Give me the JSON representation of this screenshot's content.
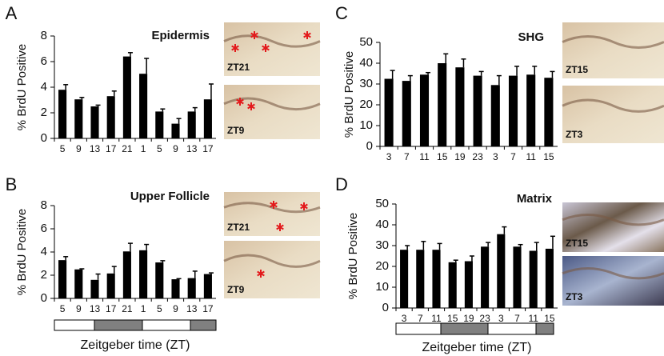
{
  "chart_data": [
    {
      "type": "bar",
      "panel": "A",
      "title": "Epidermis",
      "ylabel": "% BrdU Positive",
      "categories": [
        "5",
        "9",
        "13",
        "17",
        "21",
        "1",
        "5",
        "9",
        "13",
        "17"
      ],
      "values": [
        3.8,
        3.05,
        2.5,
        3.3,
        6.4,
        5.05,
        2.1,
        1.15,
        2.1,
        3.05
      ],
      "errors": [
        0.4,
        0.15,
        0.1,
        0.4,
        0.3,
        1.2,
        0.2,
        0.4,
        0.3,
        1.2
      ],
      "color": "#000000",
      "ylim": [
        0,
        8
      ],
      "yticks": [
        0,
        2,
        4,
        6,
        8
      ],
      "images": [
        {
          "label": "ZT21"
        },
        {
          "label": "ZT9"
        }
      ]
    },
    {
      "type": "bar",
      "panel": "B",
      "title": "Upper Follicle",
      "ylabel": "% BrdU Positive",
      "xlabel": "Zeitgeber time (ZT)",
      "categories": [
        "5",
        "9",
        "13",
        "17",
        "21",
        "1",
        "5",
        "9",
        "13",
        "17"
      ],
      "values": [
        3.3,
        2.5,
        1.6,
        2.15,
        4.05,
        4.15,
        3.1,
        1.65,
        1.75,
        2.1
      ],
      "errors": [
        0.3,
        0.05,
        0.5,
        0.6,
        0.7,
        0.5,
        0.15,
        0.05,
        0.6,
        0.1
      ],
      "color": "#000000",
      "ylim": [
        0,
        8
      ],
      "yticks": [
        0,
        2,
        4,
        6,
        8
      ],
      "images": [
        {
          "label": "ZT21"
        },
        {
          "label": "ZT9"
        }
      ]
    },
    {
      "type": "bar",
      "panel": "C",
      "title": "SHG",
      "ylabel": "% BrdU Positive",
      "categories": [
        "3",
        "7",
        "11",
        "15",
        "19",
        "23",
        "3",
        "7",
        "11",
        "15"
      ],
      "values": [
        32.5,
        31.5,
        34.5,
        40,
        38,
        34,
        29.5,
        34,
        34.5,
        33
      ],
      "errors": [
        4,
        2.5,
        1,
        4.5,
        4,
        2,
        4.5,
        4.5,
        4,
        3
      ],
      "color": "#000000",
      "ylim": [
        0,
        50
      ],
      "yticks": [
        0,
        10,
        20,
        30,
        40,
        50
      ],
      "images": [
        {
          "label": "ZT15"
        },
        {
          "label": "ZT3"
        }
      ]
    },
    {
      "type": "bar",
      "panel": "D",
      "title": "Matrix",
      "ylabel": "% BrdU Positive",
      "xlabel": "Zeitgeber time (ZT)",
      "categories": [
        "3",
        "7",
        "11",
        "15",
        "19",
        "23",
        "3",
        "7",
        "11",
        "15"
      ],
      "values": [
        28,
        28,
        28,
        22,
        22.5,
        29.5,
        35.5,
        29.5,
        27.5,
        28.5
      ],
      "errors": [
        2,
        4,
        3,
        1,
        2.5,
        2,
        3.5,
        1,
        4,
        6
      ],
      "color": "#000000",
      "ylim": [
        0,
        50
      ],
      "yticks": [
        0,
        10,
        20,
        30,
        40,
        50
      ],
      "images": [
        {
          "label": "ZT15"
        },
        {
          "label": "ZT3"
        }
      ]
    }
  ]
}
